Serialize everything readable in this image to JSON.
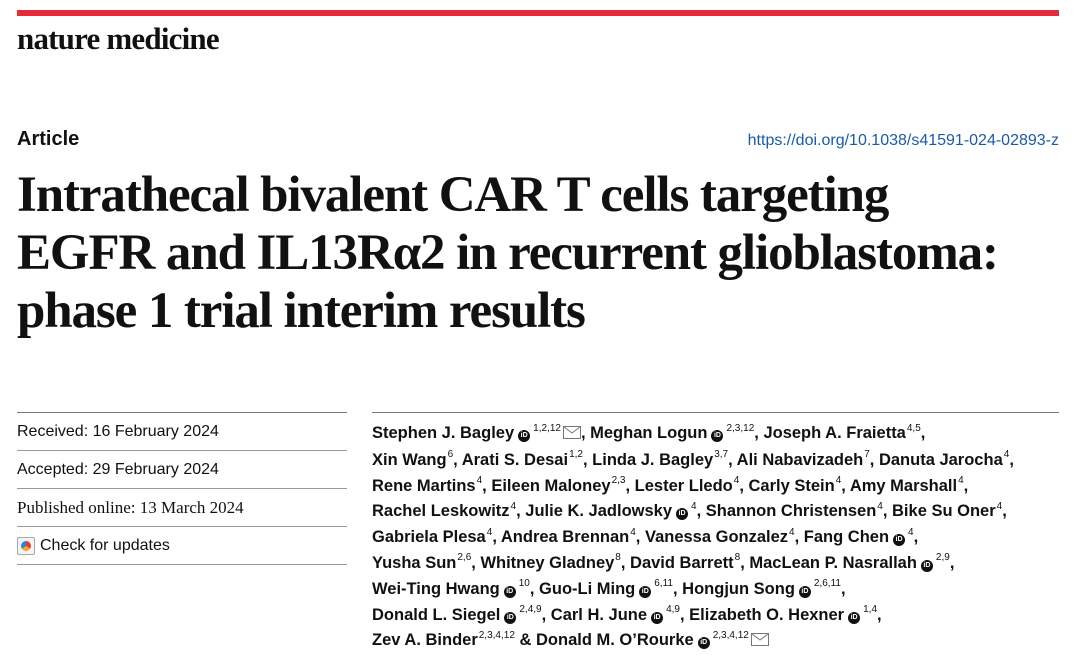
{
  "journal": "nature medicine",
  "article_type": "Article",
  "doi": "https://doi.org/10.1038/s41591-024-02893-z",
  "title_lines": [
    "Intrathecal bivalent CAR T cells targeting",
    "EGFR and IL13Rα2 in recurrent glioblastoma:",
    "phase 1 trial interim results"
  ],
  "dates": {
    "received": "Received: 16 February 2024",
    "accepted": "Accepted: 29 February 2024",
    "published": "Published online: 13 March 2024",
    "check_updates": "Check for updates"
  },
  "colors": {
    "accent_bar": "#e52a3a",
    "link": "#1a5aa6"
  },
  "icons": {
    "orcid": "orcid-icon",
    "email": "envelope-icon",
    "updates": "check-for-updates-icon"
  },
  "authors": [
    {
      "name": "Stephen J. Bagley",
      "orcid": true,
      "aff": "1,2,12",
      "email": true
    },
    {
      "name": "Meghan Logun",
      "orcid": true,
      "aff": "2,3,12"
    },
    {
      "name": "Joseph A. Fraietta",
      "orcid": false,
      "aff": "4,5"
    },
    {
      "name": "Xin Wang",
      "orcid": false,
      "aff": "6"
    },
    {
      "name": "Arati S. Desai",
      "orcid": false,
      "aff": "1,2"
    },
    {
      "name": "Linda J. Bagley",
      "orcid": false,
      "aff": "3,7"
    },
    {
      "name": "Ali Nabavizadeh",
      "orcid": false,
      "aff": "7"
    },
    {
      "name": "Danuta Jarocha",
      "orcid": false,
      "aff": "4"
    },
    {
      "name": "Rene Martins",
      "orcid": false,
      "aff": "4"
    },
    {
      "name": "Eileen Maloney",
      "orcid": false,
      "aff": "2,3"
    },
    {
      "name": "Lester Lledo",
      "orcid": false,
      "aff": "4"
    },
    {
      "name": "Carly Stein",
      "orcid": false,
      "aff": "4"
    },
    {
      "name": "Amy Marshall",
      "orcid": false,
      "aff": "4"
    },
    {
      "name": "Rachel Leskowitz",
      "orcid": false,
      "aff": "4"
    },
    {
      "name": "Julie K. Jadlowsky",
      "orcid": true,
      "aff": "4"
    },
    {
      "name": "Shannon Christensen",
      "orcid": false,
      "aff": "4"
    },
    {
      "name": "Bike Su Oner",
      "orcid": false,
      "aff": "4"
    },
    {
      "name": "Gabriela Plesa",
      "orcid": false,
      "aff": "4"
    },
    {
      "name": "Andrea Brennan",
      "orcid": false,
      "aff": "4"
    },
    {
      "name": "Vanessa Gonzalez",
      "orcid": false,
      "aff": "4"
    },
    {
      "name": "Fang Chen",
      "orcid": true,
      "aff": "4"
    },
    {
      "name": "Yusha Sun",
      "orcid": false,
      "aff": "2,6"
    },
    {
      "name": "Whitney Gladney",
      "orcid": false,
      "aff": "8"
    },
    {
      "name": "David Barrett",
      "orcid": false,
      "aff": "8"
    },
    {
      "name": "MacLean P. Nasrallah",
      "orcid": true,
      "aff": "2,9"
    },
    {
      "name": "Wei-Ting Hwang",
      "orcid": true,
      "aff": "10"
    },
    {
      "name": "Guo-Li Ming",
      "orcid": true,
      "aff": "6,11"
    },
    {
      "name": "Hongjun Song",
      "orcid": true,
      "aff": "2,6,11"
    },
    {
      "name": "Donald L. Siegel",
      "orcid": true,
      "aff": "2,4,9"
    },
    {
      "name": "Carl H. June",
      "orcid": true,
      "aff": "4,9"
    },
    {
      "name": "Elizabeth O. Hexner",
      "orcid": true,
      "aff": "1,4"
    },
    {
      "name": "Zev A. Binder",
      "orcid": false,
      "aff": "2,3,4,12"
    },
    {
      "name": "Donald M. O’Rourke",
      "orcid": true,
      "aff": "2,3,4,12",
      "email": true
    }
  ],
  "author_lines": [
    [
      0,
      1,
      2
    ],
    [
      3,
      4,
      5,
      6,
      7
    ],
    [
      8,
      9,
      10,
      11,
      12
    ],
    [
      13,
      14,
      15,
      16
    ],
    [
      17,
      18,
      19,
      20
    ],
    [
      21,
      22,
      23,
      24
    ],
    [
      25,
      26,
      27
    ],
    [
      28,
      29,
      30
    ],
    [
      31,
      32
    ]
  ]
}
